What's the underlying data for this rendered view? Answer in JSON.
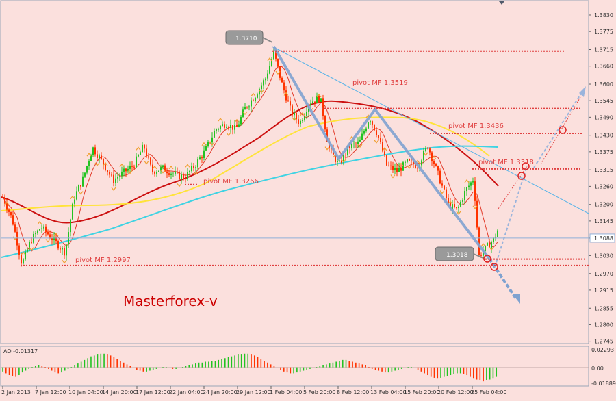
{
  "chart_data": {
    "type": "candlestick",
    "instrument_watermark": "Masterforex-v",
    "y_axis_ticks": [
      "1.3830",
      "1.3775",
      "1.3715",
      "1.3660",
      "1.3600",
      "1.3545",
      "1.3490",
      "1.3430",
      "1.3375",
      "1.3315",
      "1.3260",
      "1.3200",
      "1.3145",
      "1.3088",
      "1.3030",
      "1.2970",
      "1.2915",
      "1.2855",
      "1.2800",
      "1.2745"
    ],
    "ylim": [
      1.2735,
      1.3855
    ],
    "current_price": 1.3088,
    "x_axis_ticks": [
      "2 Jan 2013",
      "7 Jan 12:00",
      "10 Jan 04:00",
      "14 Jan 20:00",
      "17 Jan 12:00",
      "22 Jan 04:00",
      "24 Jan 20:00",
      "29 Jan 12:00",
      "1 Feb 04:00",
      "5 Feb 20:00",
      "8 Feb 12:00",
      "13 Feb 04:00",
      "15 Feb 20:00",
      "20 Feb 12:00",
      "25 Feb 04:00"
    ],
    "callouts": [
      {
        "label": "1.3710",
        "value": 1.371
      },
      {
        "label": "1.3018",
        "value": 1.3018
      }
    ],
    "pivots": [
      {
        "label": "pivot MF 1.3519",
        "value": 1.3519
      },
      {
        "label": "pivot MF 1.3436",
        "value": 1.3436
      },
      {
        "label": "pivot MF 1.3318",
        "value": 1.3318
      },
      {
        "label": "pivot MF 1.3266",
        "value": 1.3266
      },
      {
        "label": "pivot MF 1.2997",
        "value": 1.2997
      }
    ],
    "indicator": {
      "label": "AO -0.01317",
      "value": -0.01317,
      "ticks": [
        "0.02293",
        "0.00",
        "-0.01889"
      ],
      "ylim": [
        -0.0195,
        0.0235
      ],
      "bars": [
        -0.004,
        -0.006,
        -0.008,
        -0.009,
        -0.01,
        -0.008,
        -0.005,
        -0.003,
        -0.001,
        0.001,
        0.002,
        0.003,
        0.002,
        0.001,
        -0.001,
        -0.003,
        -0.005,
        -0.006,
        -0.005,
        -0.003,
        -0.001,
        0.001,
        0.003,
        0.005,
        0.007,
        0.009,
        0.011,
        0.013,
        0.014,
        0.015,
        0.016,
        0.016,
        0.015,
        0.014,
        0.012,
        0.01,
        0.008,
        0.006,
        0.004,
        0.002,
        0.0,
        -0.002,
        -0.003,
        -0.004,
        -0.004,
        -0.003,
        -0.002,
        -0.001,
        0.0,
        0.001,
        0.001,
        0.0,
        -0.001,
        -0.001,
        0.0,
        0.001,
        0.002,
        0.003,
        0.004,
        0.005,
        0.006,
        0.006,
        0.007,
        0.007,
        0.008,
        0.008,
        0.009,
        0.01,
        0.011,
        0.012,
        0.013,
        0.014,
        0.015,
        0.015,
        0.016,
        0.016,
        0.015,
        0.014,
        0.012,
        0.01,
        0.008,
        0.006,
        0.004,
        0.002,
        0.0,
        -0.002,
        -0.004,
        -0.005,
        -0.006,
        -0.006,
        -0.005,
        -0.004,
        -0.003,
        -0.002,
        -0.001,
        0.0,
        0.001,
        0.002,
        0.003,
        0.004,
        0.005,
        0.006,
        0.007,
        0.008,
        0.009,
        0.009,
        0.008,
        0.007,
        0.006,
        0.005,
        0.004,
        0.003,
        0.001,
        -0.001,
        -0.002,
        -0.003,
        -0.004,
        -0.005,
        -0.005,
        -0.004,
        -0.003,
        -0.002,
        -0.001,
        0.0,
        0.001,
        0.001,
        0.0,
        -0.002,
        -0.004,
        -0.006,
        -0.008,
        -0.01,
        -0.011,
        -0.012,
        -0.011,
        -0.01,
        -0.009,
        -0.008,
        -0.007,
        -0.006,
        -0.006,
        -0.007,
        -0.008,
        -0.01,
        -0.012,
        -0.013,
        -0.014,
        -0.015,
        -0.014,
        -0.013,
        -0.012,
        -0.01
      ]
    }
  },
  "colors": {
    "background": "#fbe0dd",
    "bull_candle": "#22c322",
    "bear_candle": "#ff3300",
    "ma_fast": "#e23b2a",
    "ma_mid": "#cc1010",
    "ma_slow": "#ffe33a",
    "ma_long": "#3fd3e3",
    "pivot": "#e04040",
    "trendline": "#5ab4e8",
    "zigzag": "#7fa2d0",
    "watermark": "#cc0000",
    "axis_text": "#303030"
  }
}
